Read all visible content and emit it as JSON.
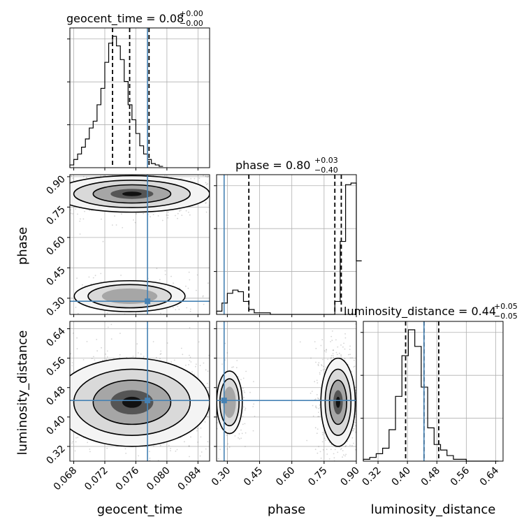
{
  "chart_data": {
    "type": "corner",
    "parameters": [
      "geocent_time",
      "phase",
      "luminosity_distance"
    ],
    "injection": {
      "geocent_time": 0.0775,
      "phase": 0.285,
      "luminosity_distance": 0.445
    },
    "colors": {
      "hist": "#000000",
      "truth": "#4682b4",
      "grid": "#b0b0b0",
      "quantile": "#000000"
    },
    "grid": true,
    "diagonal": [
      {
        "param": "geocent_time",
        "title_main": "geocent_time = 0.08",
        "title_sup": "+0.00",
        "title_sub": "−0.00",
        "xlim": [
          0.0675,
          0.0855
        ],
        "bin_width": 0.0005,
        "counts": [
          2,
          6,
          10,
          15,
          21,
          29,
          34,
          46,
          58,
          77,
          91,
          96,
          89,
          79,
          63,
          46,
          35,
          25,
          16,
          10,
          6,
          3,
          2,
          1
        ],
        "quantiles": [
          0.073,
          0.0752,
          0.0777,
          0.0775
        ],
        "xticks": [],
        "yticks_count": 4
      },
      {
        "param": "phase",
        "title_main": "phase = 0.80",
        "title_sup": "+0.03",
        "title_sub": "−0.40",
        "xlim": [
          0.25,
          0.9
        ],
        "bin_width": 0.025,
        "counts": [
          2,
          7,
          13,
          15,
          14,
          8,
          3,
          1,
          1,
          1,
          0,
          0,
          0,
          0,
          0,
          0,
          0,
          0,
          0,
          0,
          0,
          0,
          8,
          45,
          80,
          81,
          33
        ],
        "quantiles": [
          0.4,
          0.8,
          0.83,
          0.285
        ],
        "xticks": [],
        "yticks_count": 4
      },
      {
        "param": "luminosity_distance",
        "title_main": "luminosity_distance = 0.44",
        "title_sup": "+0.05",
        "title_sub": "−0.05",
        "xlim": [
          0.28,
          0.66
        ],
        "bin_width": 0.0175,
        "counts": [
          1,
          2,
          4,
          7,
          17,
          35,
          57,
          71,
          62,
          40,
          18,
          9,
          6,
          3,
          1,
          1,
          0,
          0,
          0,
          0,
          0
        ],
        "quantiles": [
          0.395,
          0.445,
          0.485,
          0.445
        ],
        "xticks": [
          "0.32",
          "0.40",
          "0.48",
          "0.56",
          "0.64"
        ],
        "xtick_values": [
          0.32,
          0.4,
          0.48,
          0.56,
          0.64
        ],
        "xlabel": "luminosity_distance"
      }
    ],
    "panels_2d": [
      {
        "x": "geocent_time",
        "y": "phase",
        "xlim": [
          0.0675,
          0.0855
        ],
        "ylim": [
          0.22,
          0.91
        ],
        "yticks": [
          "0.90",
          "0.75",
          "0.60",
          "0.45",
          "0.30"
        ],
        "ytick_values": [
          0.9,
          0.75,
          0.6,
          0.45,
          0.3
        ],
        "ylabel": "phase",
        "modes": [
          {
            "cx": 0.0755,
            "cy": 0.815,
            "rx": 0.005,
            "ry": 0.045,
            "weight": 0.82
          },
          {
            "cx": 0.0752,
            "cy": 0.31,
            "rx": 0.0042,
            "ry": 0.045,
            "weight": 0.18
          }
        ]
      },
      {
        "x": "geocent_time",
        "y": "luminosity_distance",
        "xlim": [
          0.0675,
          0.0855
        ],
        "ylim": [
          0.28,
          0.66
        ],
        "yticks": [
          "0.64",
          "0.56",
          "0.48",
          "0.40",
          "0.32"
        ],
        "ytick_values": [
          0.64,
          0.56,
          0.48,
          0.4,
          0.32
        ],
        "xticks": [
          "0.068",
          "0.072",
          "0.076",
          "0.080",
          "0.084"
        ],
        "xtick_values": [
          0.068,
          0.072,
          0.076,
          0.08,
          0.084
        ],
        "xlabel": "geocent_time",
        "ylabel": "luminosity_distance",
        "modes": [
          {
            "cx": 0.0755,
            "cy": 0.44,
            "rx": 0.005,
            "ry": 0.06,
            "weight": 1.0
          }
        ]
      },
      {
        "x": "phase",
        "y": "luminosity_distance",
        "xlim": [
          0.25,
          0.9
        ],
        "ylim": [
          0.28,
          0.66
        ],
        "xticks": [
          "0.30",
          "0.45",
          "0.60",
          "0.75",
          "0.90"
        ],
        "xtick_values": [
          0.3,
          0.45,
          0.6,
          0.75,
          0.9
        ],
        "xlabel": "phase",
        "modes": [
          {
            "cx": 0.815,
            "cy": 0.44,
            "rx": 0.04,
            "ry": 0.06,
            "weight": 0.82
          },
          {
            "cx": 0.31,
            "cy": 0.44,
            "rx": 0.035,
            "ry": 0.05,
            "weight": 0.18
          }
        ]
      }
    ]
  }
}
